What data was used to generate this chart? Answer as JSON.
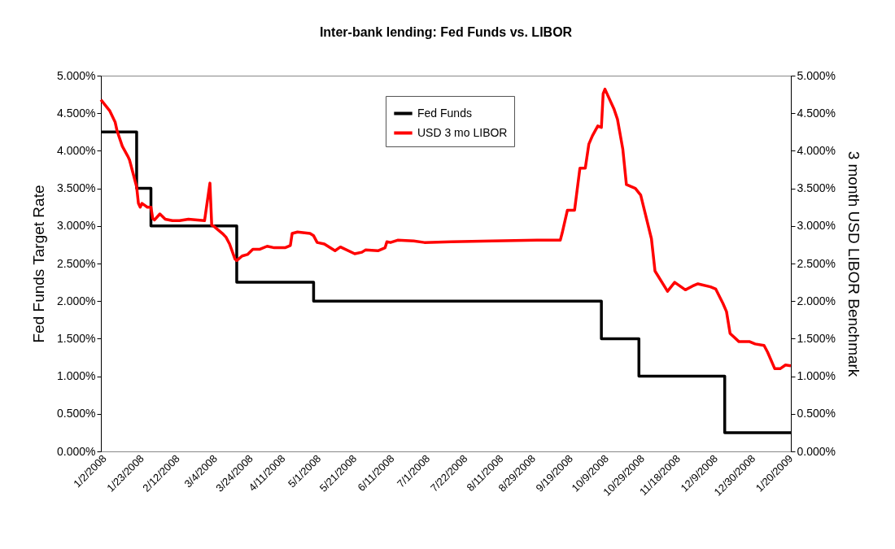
{
  "chart_data": {
    "type": "line",
    "title": "Inter-bank lending:  Fed Funds vs. LIBOR",
    "ylabel": "Fed Funds Target Rate",
    "y2label": "3 month USD LIBOR Benchmark",
    "xlim": [
      "2008-01-02",
      "2009-01-22"
    ],
    "xticks": [
      {
        "value": "2008-01-02",
        "label": "1/2/2008"
      },
      {
        "value": "2008-01-23",
        "label": "1/23/2008"
      },
      {
        "value": "2008-02-12",
        "label": "2/12/2008"
      },
      {
        "value": "2008-03-04",
        "label": "3/4/2008"
      },
      {
        "value": "2008-03-24",
        "label": "3/24/2008"
      },
      {
        "value": "2008-04-11",
        "label": "4/11/2008"
      },
      {
        "value": "2008-05-01",
        "label": "5/1/2008"
      },
      {
        "value": "2008-05-21",
        "label": "5/21/2008"
      },
      {
        "value": "2008-06-11",
        "label": "6/11/2008"
      },
      {
        "value": "2008-07-01",
        "label": "7/1/2008"
      },
      {
        "value": "2008-07-22",
        "label": "7/22/2008"
      },
      {
        "value": "2008-08-11",
        "label": "8/11/2008"
      },
      {
        "value": "2008-08-29",
        "label": "8/29/2008"
      },
      {
        "value": "2008-09-19",
        "label": "9/19/2008"
      },
      {
        "value": "2008-10-09",
        "label": "10/9/2008"
      },
      {
        "value": "2008-10-29",
        "label": "10/29/2008"
      },
      {
        "value": "2008-11-18",
        "label": "11/18/2008"
      },
      {
        "value": "2008-12-09",
        "label": "12/9/2008"
      },
      {
        "value": "2008-12-30",
        "label": "12/30/2008"
      },
      {
        "value": "2009-01-20",
        "label": "1/20/2009"
      }
    ],
    "ylim": [
      0,
      5
    ],
    "yticks": [
      {
        "value": 0,
        "label": "0.000%"
      },
      {
        "value": 0.5,
        "label": "0.500%"
      },
      {
        "value": 1,
        "label": "1.000%"
      },
      {
        "value": 1.5,
        "label": "1.500%"
      },
      {
        "value": 2,
        "label": "2.000%"
      },
      {
        "value": 2.5,
        "label": "2.500%"
      },
      {
        "value": 3,
        "label": "3.000%"
      },
      {
        "value": 3.5,
        "label": "3.500%"
      },
      {
        "value": 4,
        "label": "4.000%"
      },
      {
        "value": 4.5,
        "label": "4.500%"
      },
      {
        "value": 5,
        "label": "5.000%"
      }
    ],
    "y2lim": [
      0,
      5
    ],
    "y2ticks": [
      {
        "value": 0,
        "label": "0.000%"
      },
      {
        "value": 0.5,
        "label": "0.500%"
      },
      {
        "value": 1,
        "label": "1.000%"
      },
      {
        "value": 1.5,
        "label": "1.500%"
      },
      {
        "value": 2,
        "label": "2.000%"
      },
      {
        "value": 2.5,
        "label": "2.500%"
      },
      {
        "value": 3,
        "label": "3.000%"
      },
      {
        "value": 3.5,
        "label": "3.500%"
      },
      {
        "value": 4,
        "label": "4.000%"
      },
      {
        "value": 4.5,
        "label": "4.500%"
      },
      {
        "value": 5,
        "label": "5.000%"
      }
    ],
    "grid": false,
    "legend": "top",
    "marker": "none",
    "line_style": "solid",
    "series": [
      {
        "name": "Fed Funds",
        "color": "#000000",
        "type": "step",
        "x": [
          "2008-01-02",
          "2008-01-22",
          "2008-01-30",
          "2008-03-18",
          "2008-04-30",
          "2008-10-08",
          "2008-10-29",
          "2008-12-16",
          "2009-01-22"
        ],
        "values": [
          4.25,
          3.5,
          3.0,
          2.25,
          2.0,
          1.5,
          1.0,
          0.25,
          0.25
        ]
      },
      {
        "name": "USD 3 mo LIBOR",
        "color": "#ff0000",
        "axis": "y2",
        "x": [
          "2008-01-02",
          "2008-01-04",
          "2008-01-07",
          "2008-01-10",
          "2008-01-11",
          "2008-01-14",
          "2008-01-17",
          "2008-01-18",
          "2008-01-22",
          "2008-01-23",
          "2008-01-24",
          "2008-01-25",
          "2008-01-28",
          "2008-01-30",
          "2008-01-31",
          "2008-02-01",
          "2008-02-04",
          "2008-02-07",
          "2008-02-11",
          "2008-02-15",
          "2008-02-20",
          "2008-02-25",
          "2008-02-29",
          "2008-03-03",
          "2008-03-04",
          "2008-03-05",
          "2008-03-10",
          "2008-03-12",
          "2008-03-14",
          "2008-03-17",
          "2008-03-18",
          "2008-03-21",
          "2008-03-24",
          "2008-03-27",
          "2008-03-31",
          "2008-04-04",
          "2008-04-08",
          "2008-04-14",
          "2008-04-17",
          "2008-04-18",
          "2008-04-21",
          "2008-04-28",
          "2008-04-30",
          "2008-05-02",
          "2008-05-06",
          "2008-05-12",
          "2008-05-15",
          "2008-05-23",
          "2008-05-27",
          "2008-05-29",
          "2008-06-05",
          "2008-06-09",
          "2008-06-10",
          "2008-06-12",
          "2008-06-16",
          "2008-06-25",
          "2008-07-01",
          "2008-07-16",
          "2008-08-08",
          "2008-09-02",
          "2008-09-15",
          "2008-09-16",
          "2008-09-19",
          "2008-09-23",
          "2008-09-26",
          "2008-09-29",
          "2008-10-01",
          "2008-10-03",
          "2008-10-06",
          "2008-10-08",
          "2008-10-09",
          "2008-10-10",
          "2008-10-15",
          "2008-10-17",
          "2008-10-20",
          "2008-10-22",
          "2008-10-27",
          "2008-10-30",
          "2008-11-05",
          "2008-11-07",
          "2008-11-14",
          "2008-11-18",
          "2008-11-24",
          "2008-11-28",
          "2008-12-01",
          "2008-12-08",
          "2008-12-11",
          "2008-12-15",
          "2008-12-17",
          "2008-12-19",
          "2008-12-24",
          "2008-12-30",
          "2009-01-02",
          "2009-01-07",
          "2009-01-09",
          "2009-01-13",
          "2009-01-16",
          "2009-01-19",
          "2009-01-22"
        ],
        "values": [
          4.68,
          4.62,
          4.53,
          4.38,
          4.27,
          4.06,
          3.93,
          3.88,
          3.52,
          3.3,
          3.25,
          3.3,
          3.25,
          3.25,
          3.1,
          3.08,
          3.16,
          3.09,
          3.07,
          3.07,
          3.09,
          3.08,
          3.07,
          3.57,
          3.01,
          3.0,
          2.9,
          2.85,
          2.76,
          2.56,
          2.54,
          2.6,
          2.62,
          2.69,
          2.69,
          2.73,
          2.71,
          2.71,
          2.74,
          2.9,
          2.92,
          2.9,
          2.87,
          2.78,
          2.76,
          2.67,
          2.72,
          2.63,
          2.65,
          2.68,
          2.67,
          2.71,
          2.79,
          2.78,
          2.81,
          2.8,
          2.78,
          2.79,
          2.8,
          2.81,
          2.81,
          2.9,
          3.21,
          3.21,
          3.77,
          3.77,
          4.09,
          4.2,
          4.33,
          4.31,
          4.76,
          4.82,
          4.56,
          4.42,
          4.02,
          3.55,
          3.5,
          3.41,
          2.83,
          2.4,
          2.13,
          2.25,
          2.15,
          2.2,
          2.23,
          2.19,
          2.16,
          1.97,
          1.86,
          1.57,
          1.46,
          1.46,
          1.43,
          1.41,
          1.32,
          1.1,
          1.1,
          1.15,
          1.14
        ]
      }
    ]
  }
}
